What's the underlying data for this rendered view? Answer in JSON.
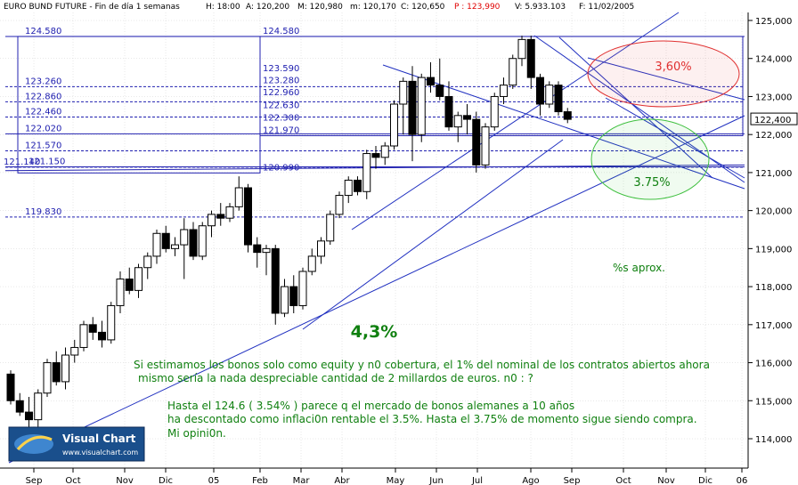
{
  "header": {
    "title": "EURO BUND FUTURE - Fin de día 1 semanas",
    "high": "H: 18:00",
    "open": "A: 120,200",
    "max": "M: 120,980",
    "min": "m: 120,170",
    "close": "C: 120,650",
    "p": "P : 123,990",
    "volume": "V: 5.933.103",
    "date": "F: 11/02/2005"
  },
  "colors": {
    "candle_up": "#ffffff",
    "candle_down": "#000000",
    "grid": "#d0d0d0",
    "levels": "#2020b0",
    "text_green": "#008000",
    "red_ellipse": "#e03030",
    "green_ellipse": "#40c040"
  },
  "chart_data": {
    "type": "candlestick",
    "ylim": [
      113.4,
      125.4
    ],
    "y_ticks": [
      "125,000",
      "124,000",
      "123,000",
      "122,000",
      "121,000",
      "120,000",
      "119,000",
      "118,000",
      "117,000",
      "116,000",
      "115,000",
      "114,000"
    ],
    "y_tick_values": [
      125,
      124,
      123,
      122,
      121,
      120,
      119,
      118,
      117,
      116,
      115,
      114
    ],
    "x_tick_labels": [
      "Sep",
      "Oct",
      "Nov",
      "Dic",
      "05",
      "Feb",
      "Mar",
      "Abr",
      "May",
      "Jun",
      "Jul",
      "Ago",
      "Sep",
      "Oct",
      "Nov",
      "Dic",
      "06"
    ],
    "current_price": "122,400",
    "current_value": 122.4,
    "candles": [
      {
        "o": 115.7,
        "h": 115.8,
        "l": 114.9,
        "c": 115.0
      },
      {
        "o": 115.0,
        "h": 115.2,
        "l": 114.6,
        "c": 114.7
      },
      {
        "o": 114.7,
        "h": 115.1,
        "l": 114.2,
        "c": 114.5
      },
      {
        "o": 114.5,
        "h": 115.3,
        "l": 114.3,
        "c": 115.2
      },
      {
        "o": 115.2,
        "h": 116.1,
        "l": 115.1,
        "c": 116.0
      },
      {
        "o": 116.0,
        "h": 116.3,
        "l": 115.4,
        "c": 115.5
      },
      {
        "o": 115.5,
        "h": 116.4,
        "l": 115.3,
        "c": 116.2
      },
      {
        "o": 116.2,
        "h": 116.6,
        "l": 116.0,
        "c": 116.4
      },
      {
        "o": 116.4,
        "h": 117.1,
        "l": 116.3,
        "c": 117.0
      },
      {
        "o": 117.0,
        "h": 117.2,
        "l": 116.6,
        "c": 116.8
      },
      {
        "o": 116.8,
        "h": 117.1,
        "l": 116.4,
        "c": 116.6
      },
      {
        "o": 116.6,
        "h": 117.6,
        "l": 116.5,
        "c": 117.5
      },
      {
        "o": 117.5,
        "h": 118.4,
        "l": 117.3,
        "c": 118.2
      },
      {
        "o": 118.2,
        "h": 118.5,
        "l": 117.8,
        "c": 117.9
      },
      {
        "o": 117.9,
        "h": 118.6,
        "l": 117.7,
        "c": 118.5
      },
      {
        "o": 118.5,
        "h": 118.9,
        "l": 118.2,
        "c": 118.8
      },
      {
        "o": 118.8,
        "h": 119.5,
        "l": 118.6,
        "c": 119.4
      },
      {
        "o": 119.4,
        "h": 119.6,
        "l": 118.9,
        "c": 119.0
      },
      {
        "o": 119.0,
        "h": 119.3,
        "l": 118.8,
        "c": 119.1
      },
      {
        "o": 119.1,
        "h": 119.8,
        "l": 118.2,
        "c": 119.5
      },
      {
        "o": 119.5,
        "h": 119.7,
        "l": 118.7,
        "c": 118.8
      },
      {
        "o": 118.8,
        "h": 119.7,
        "l": 118.7,
        "c": 119.6
      },
      {
        "o": 119.6,
        "h": 120.0,
        "l": 119.3,
        "c": 119.9
      },
      {
        "o": 119.9,
        "h": 120.2,
        "l": 119.6,
        "c": 119.8
      },
      {
        "o": 119.8,
        "h": 120.2,
        "l": 119.7,
        "c": 120.1
      },
      {
        "o": 120.1,
        "h": 120.9,
        "l": 120.0,
        "c": 120.6
      },
      {
        "o": 120.6,
        "h": 120.7,
        "l": 118.9,
        "c": 119.1
      },
      {
        "o": 119.1,
        "h": 119.3,
        "l": 118.5,
        "c": 118.9
      },
      {
        "o": 118.9,
        "h": 119.1,
        "l": 118.3,
        "c": 119.0
      },
      {
        "o": 119.0,
        "h": 119.1,
        "l": 117.0,
        "c": 117.3
      },
      {
        "o": 117.3,
        "h": 118.2,
        "l": 117.2,
        "c": 118.0
      },
      {
        "o": 118.0,
        "h": 118.3,
        "l": 117.3,
        "c": 117.5
      },
      {
        "o": 117.5,
        "h": 118.5,
        "l": 117.4,
        "c": 118.4
      },
      {
        "o": 118.4,
        "h": 119.0,
        "l": 118.3,
        "c": 118.8
      },
      {
        "o": 118.8,
        "h": 119.3,
        "l": 118.6,
        "c": 119.2
      },
      {
        "o": 119.2,
        "h": 120.0,
        "l": 119.1,
        "c": 119.9
      },
      {
        "o": 119.9,
        "h": 120.5,
        "l": 119.8,
        "c": 120.4
      },
      {
        "o": 120.4,
        "h": 120.9,
        "l": 120.2,
        "c": 120.8
      },
      {
        "o": 120.8,
        "h": 120.9,
        "l": 120.4,
        "c": 120.5
      },
      {
        "o": 120.5,
        "h": 121.6,
        "l": 120.3,
        "c": 121.5
      },
      {
        "o": 121.5,
        "h": 121.7,
        "l": 121.1,
        "c": 121.4
      },
      {
        "o": 121.4,
        "h": 121.8,
        "l": 121.2,
        "c": 121.7
      },
      {
        "o": 121.7,
        "h": 122.9,
        "l": 121.6,
        "c": 122.8
      },
      {
        "o": 122.8,
        "h": 123.5,
        "l": 122.0,
        "c": 123.4
      },
      {
        "o": 123.4,
        "h": 123.8,
        "l": 121.3,
        "c": 122.0
      },
      {
        "o": 122.0,
        "h": 123.6,
        "l": 121.8,
        "c": 123.5
      },
      {
        "o": 123.5,
        "h": 123.9,
        "l": 123.1,
        "c": 123.3
      },
      {
        "o": 123.3,
        "h": 124.0,
        "l": 122.9,
        "c": 123.0
      },
      {
        "o": 123.0,
        "h": 123.4,
        "l": 122.1,
        "c": 122.2
      },
      {
        "o": 122.2,
        "h": 122.6,
        "l": 121.8,
        "c": 122.5
      },
      {
        "o": 122.5,
        "h": 122.8,
        "l": 122.0,
        "c": 122.4
      },
      {
        "o": 122.4,
        "h": 122.6,
        "l": 121.0,
        "c": 121.2
      },
      {
        "o": 121.2,
        "h": 122.3,
        "l": 121.1,
        "c": 122.2
      },
      {
        "o": 122.2,
        "h": 123.1,
        "l": 122.1,
        "c": 123.0
      },
      {
        "o": 123.0,
        "h": 123.5,
        "l": 122.8,
        "c": 123.3
      },
      {
        "o": 123.3,
        "h": 124.1,
        "l": 123.2,
        "c": 124.0
      },
      {
        "o": 124.0,
        "h": 124.6,
        "l": 123.8,
        "c": 124.5
      },
      {
        "o": 124.5,
        "h": 124.6,
        "l": 123.2,
        "c": 123.5
      },
      {
        "o": 123.5,
        "h": 123.6,
        "l": 122.5,
        "c": 122.8
      },
      {
        "o": 122.8,
        "h": 123.4,
        "l": 122.7,
        "c": 123.3
      },
      {
        "o": 123.3,
        "h": 123.4,
        "l": 122.5,
        "c": 122.6
      },
      {
        "o": 122.6,
        "h": 122.7,
        "l": 122.3,
        "c": 122.4
      }
    ],
    "levels_left": [
      {
        "label": "124.580",
        "value": 124.58
      },
      {
        "label": "123.260",
        "value": 123.26
      },
      {
        "label": "122.860",
        "value": 122.86
      },
      {
        "label": "122.460",
        "value": 122.46
      },
      {
        "label": "122.020",
        "value": 122.02
      },
      {
        "label": "121.570",
        "value": 121.57
      },
      {
        "label": "121.140",
        "value": 121.14
      },
      {
        "label": "121.150",
        "value": 121.15
      },
      {
        "label": "119.830",
        "value": 119.83
      }
    ],
    "levels_box": [
      {
        "label": "124.580",
        "value": 124.58
      },
      {
        "label": "123.590",
        "value": 123.59
      },
      {
        "label": "123.280",
        "value": 123.28
      },
      {
        "label": "122.960",
        "value": 122.96
      },
      {
        "label": "122.630",
        "value": 122.63
      },
      {
        "label": "122.300",
        "value": 122.3
      },
      {
        "label": "121.970",
        "value": 121.97
      },
      {
        "label": "120.990",
        "value": 120.99
      }
    ]
  },
  "annotations": {
    "red_pct": "3,60%",
    "green_pct": "3.75%",
    "big_pct": "4,3%",
    "approx": "%s aprox.",
    "para1_line1": "Si estimamos los bonos solo como equity y n0 cobertura, el 1% del nominal de los contratos abiertos ahora",
    "para1_line2": "mismo sería la nada despreciable cantidad de 2 millardos de euros. n0 : ?",
    "para2_line1": "Hasta el 124.6 ( 3.54% ) parece q el mercado de bonos alemanes a 10 años",
    "para2_line2": "ha descontado como inflaci0n rentable el 3.5%. Hasta el 3.75% de momento sigue siendo compra.",
    "para2_line3": "Mi opini0n."
  },
  "logo": {
    "name": "Visual Chart",
    "url": "www.visualchart.com"
  }
}
